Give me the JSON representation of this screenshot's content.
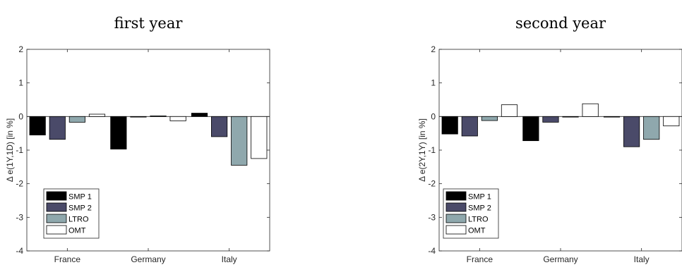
{
  "chart_data": [
    {
      "type": "bar",
      "title": "first year",
      "ylabel": "Δ e(1Y,1D) [in %]",
      "categories": [
        "France",
        "Germany",
        "Italy"
      ],
      "ylim": [
        -4,
        2
      ],
      "yticks": [
        "-4",
        "-3",
        "-2",
        "-1",
        "0",
        "1",
        "2"
      ],
      "legend_position": "bottom-left",
      "series": [
        {
          "name": "SMP 1",
          "color": "#000000",
          "values": [
            -0.55,
            -0.97,
            0.1
          ]
        },
        {
          "name": "SMP 2",
          "color": "#4a4a69",
          "values": [
            -0.68,
            0.0,
            -0.6
          ]
        },
        {
          "name": "LTRO",
          "color": "#8fa8ad",
          "values": [
            -0.17,
            0.02,
            -1.45
          ]
        },
        {
          "name": "OMT",
          "color": "#ffffff",
          "values": [
            0.07,
            -0.13,
            -1.25
          ]
        }
      ]
    },
    {
      "type": "bar",
      "title": "second year",
      "ylabel": "Δ e(2Y,1Y) [in %]",
      "categories": [
        "France",
        "Germany",
        "Italy"
      ],
      "ylim": [
        -4,
        2
      ],
      "yticks": [
        "-4",
        "-3",
        "-2",
        "-1",
        "0",
        "1",
        "2"
      ],
      "legend_position": "bottom-left",
      "series": [
        {
          "name": "SMP 1",
          "color": "#000000",
          "values": [
            -0.52,
            -0.72,
            -0.01
          ]
        },
        {
          "name": "SMP 2",
          "color": "#4a4a69",
          "values": [
            -0.58,
            -0.17,
            -0.9
          ]
        },
        {
          "name": "LTRO",
          "color": "#8fa8ad",
          "values": [
            -0.12,
            0.0,
            -0.68
          ]
        },
        {
          "name": "OMT",
          "color": "#ffffff",
          "values": [
            0.35,
            0.38,
            -0.28
          ]
        }
      ]
    }
  ]
}
